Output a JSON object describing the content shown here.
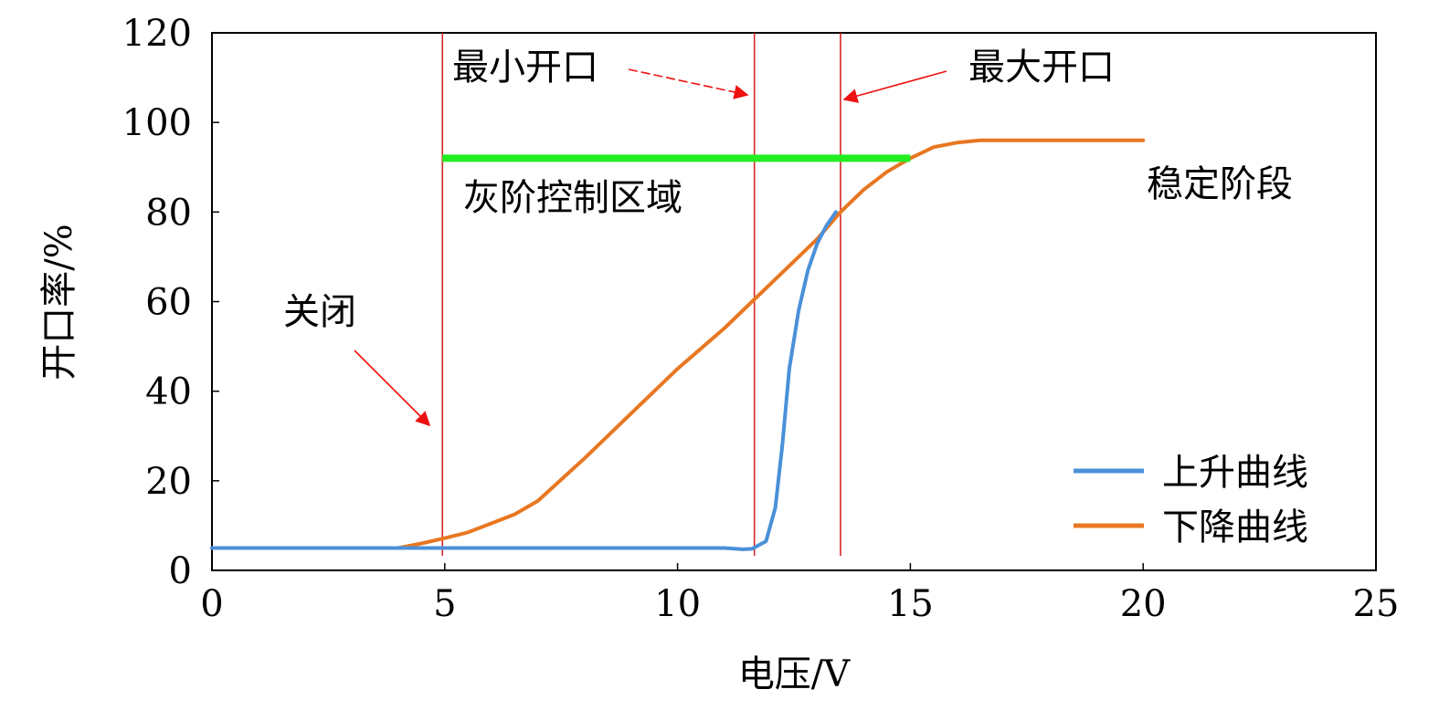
{
  "chart_data": {
    "type": "line",
    "title": "",
    "xlabel": "电压/V",
    "ylabel": "开口率/%",
    "xlim": [
      0,
      25
    ],
    "ylim": [
      0,
      120
    ],
    "x_ticks": [
      "0",
      "5",
      "10",
      "15",
      "20",
      "25"
    ],
    "y_ticks": [
      "0",
      "20",
      "40",
      "60",
      "80",
      "100",
      "120"
    ],
    "grid": false,
    "legend_position": "bottom-right",
    "series": [
      {
        "name": "上升曲线",
        "color": "#4a90d9",
        "x": [
          0,
          2,
          4,
          6,
          8,
          10,
          11,
          11.4,
          11.6,
          11.9,
          12.1,
          12.25,
          12.4,
          12.6,
          12.8,
          13.0,
          13.2,
          13.4
        ],
        "y": [
          5,
          5,
          5,
          5,
          5,
          5,
          5,
          4.7,
          4.8,
          6.5,
          14,
          28,
          45,
          58,
          67,
          73,
          77,
          80
        ]
      },
      {
        "name": "下降曲线",
        "color": "#e87722",
        "x": [
          0,
          2,
          4,
          4.5,
          5,
          5.5,
          6,
          6.5,
          7,
          8,
          9,
          10,
          11,
          11.6,
          12,
          13,
          13.5,
          14,
          14.5,
          15,
          15.5,
          16,
          16.5,
          17,
          18,
          19,
          20
        ],
        "y": [
          5,
          5,
          5,
          6,
          7.2,
          8.5,
          10.5,
          12.5,
          15.5,
          25,
          35,
          45,
          54,
          60,
          64,
          74,
          80,
          85,
          89,
          92,
          94.5,
          95.5,
          96,
          96,
          96,
          96,
          96
        ]
      }
    ],
    "reference_lines": [
      {
        "orientation": "vertical",
        "x": 4.95,
        "color": "#d62728"
      },
      {
        "orientation": "vertical",
        "x": 11.65,
        "color": "#d62728"
      },
      {
        "orientation": "vertical",
        "x": 13.5,
        "color": "#d62728"
      }
    ],
    "gray_region": {
      "x_start": 4.95,
      "x_end": 15.0,
      "y": 92,
      "color": "#22ee22"
    },
    "annotations": [
      {
        "id": "closed",
        "text": "关闭"
      },
      {
        "id": "min_open",
        "text": "最小开口"
      },
      {
        "id": "max_open",
        "text": "最大开口"
      },
      {
        "id": "gray_control",
        "text": "灰阶控制区域"
      },
      {
        "id": "stable",
        "text": "稳定阶段"
      }
    ]
  }
}
